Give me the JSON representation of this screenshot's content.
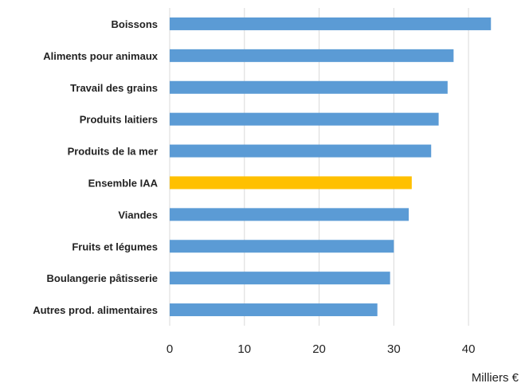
{
  "chart_data": {
    "type": "bar",
    "orientation": "horizontal",
    "categories": [
      "Boissons",
      "Aliments pour animaux",
      "Travail des grains",
      "Produits laitiers",
      "Produits de la mer",
      "Ensemble IAA",
      "Viandes",
      "Fruits et légumes",
      "Boulangerie pâtisserie",
      "Autres prod. alimentaires"
    ],
    "values": [
      43,
      38,
      37.2,
      36,
      35,
      32.4,
      32,
      30,
      29.5,
      27.8
    ],
    "highlight": {
      "category": "Ensemble IAA",
      "color": "#FFC000"
    },
    "bar_color": "#5B9BD5",
    "xlim": [
      0,
      45
    ],
    "xticks": [
      0,
      10,
      20,
      30,
      40
    ],
    "xtick_labels": [
      "0",
      "10",
      "20",
      "30",
      "40"
    ],
    "unit_label": "Milliers  €",
    "grid": "vertical",
    "grid_color": "#d9d9d9"
  }
}
